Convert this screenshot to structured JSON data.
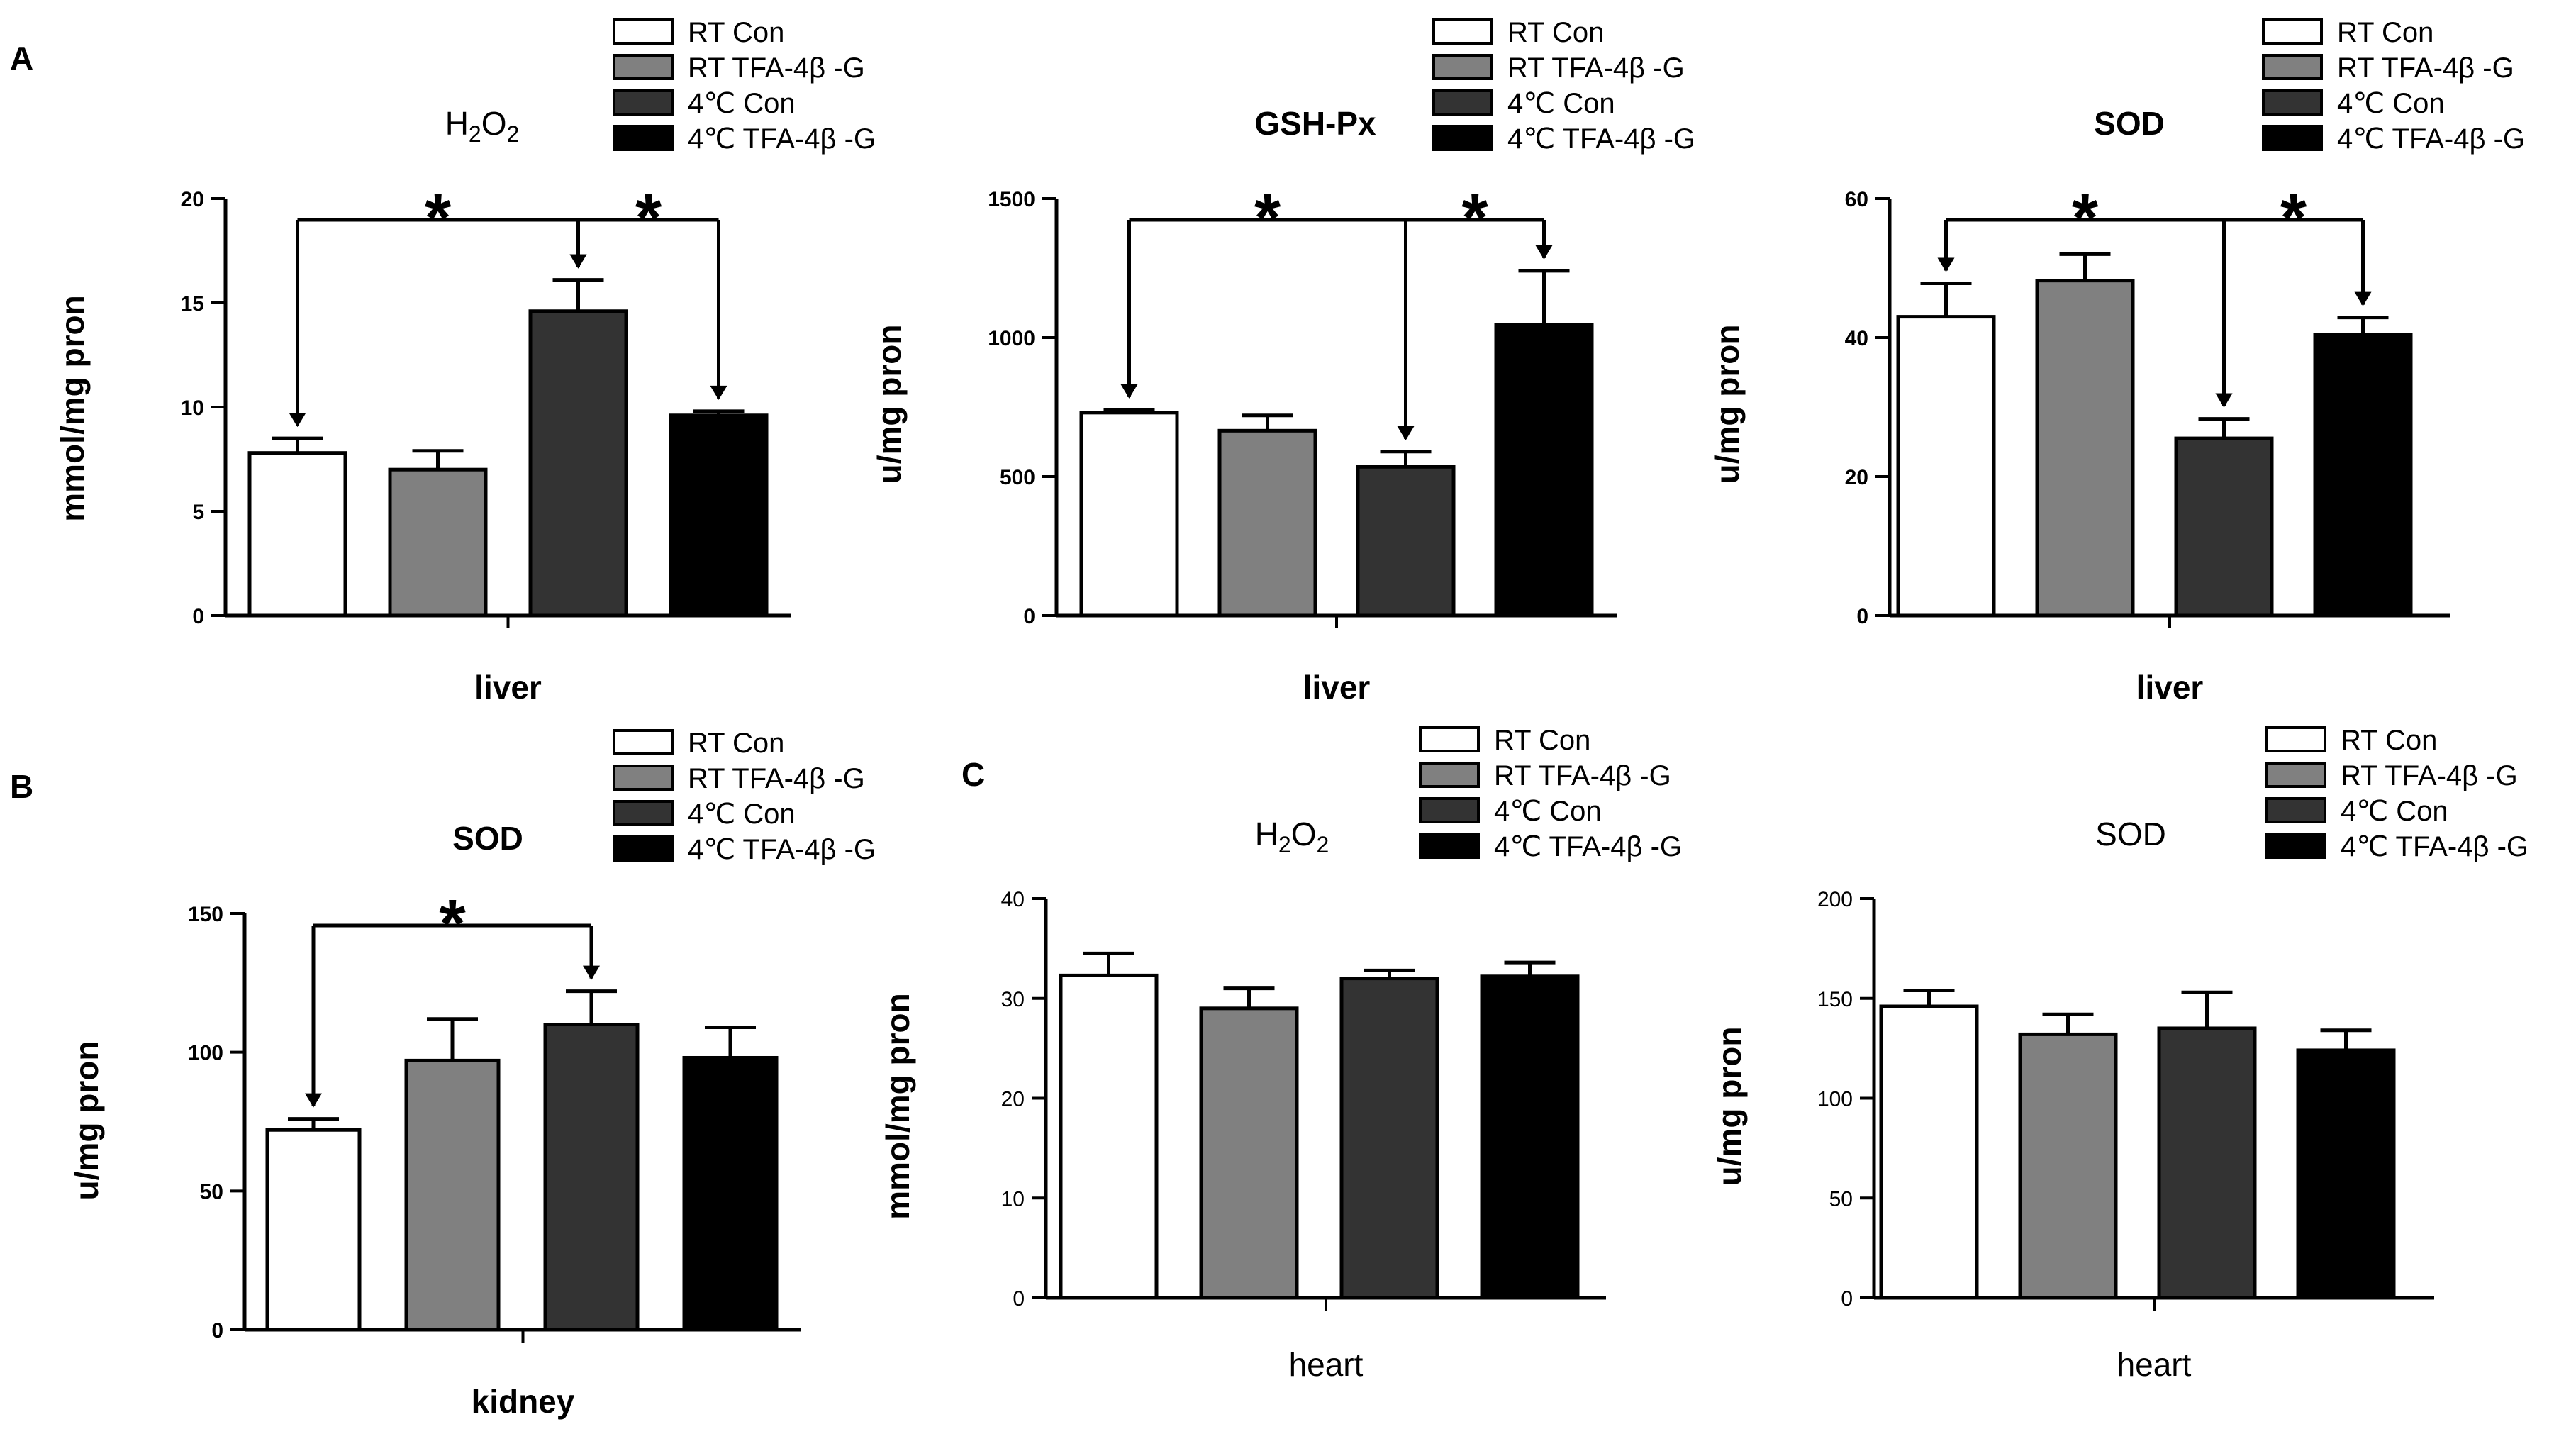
{
  "panel_labels": [
    "A",
    "B",
    "C"
  ],
  "legend": [
    {
      "label": "RT Con",
      "color": "#ffffff"
    },
    {
      "label": "RT TFA-4β -G",
      "color": "#808080"
    },
    {
      "label": "4℃  Con",
      "color": "#333333"
    },
    {
      "label": "4℃  TFA-4β -G",
      "color": "#000000"
    }
  ],
  "chart_data": [
    {
      "id": "liver_h2o2",
      "panel": "A",
      "type": "bar",
      "title": "H2O2",
      "title_main": "H",
      "title_sub1": "2",
      "title_mid": "O",
      "title_sub2": "2",
      "xlabel": "liver",
      "ylabel": "mmol/mg pron",
      "ylim": [
        0,
        20
      ],
      "yticks": [
        0,
        5,
        10,
        15,
        20
      ],
      "categories": [
        "RT Con",
        "RT TFA-4β -G",
        "4℃  Con",
        "4℃  TFA-4β -G"
      ],
      "values": [
        7.8,
        7.0,
        14.6,
        9.6
      ],
      "errors": [
        0.7,
        0.9,
        1.5,
        0.2
      ],
      "annotations": [
        {
          "text": "*",
          "from": 0,
          "to": 2
        },
        {
          "text": "*",
          "from": 2,
          "to": 3
        }
      ]
    },
    {
      "id": "liver_gshpx",
      "panel": "A",
      "type": "bar",
      "title": "GSH-Px",
      "xlabel": "liver",
      "ylabel": "u/mg pron",
      "ylim": [
        0,
        1500
      ],
      "yticks": [
        0,
        500,
        1000,
        1500
      ],
      "categories": [
        "RT Con",
        "RT TFA-4β -G",
        "4℃  Con",
        "4℃  TFA-4β -G"
      ],
      "values": [
        730,
        665,
        535,
        1045
      ],
      "errors": [
        10,
        55,
        55,
        195
      ],
      "annotations": [
        {
          "text": "*",
          "from": 0,
          "to": 2
        },
        {
          "text": "*",
          "from": 2,
          "to": 3
        }
      ]
    },
    {
      "id": "liver_sod",
      "panel": "A",
      "type": "bar",
      "title": "SOD",
      "xlabel": "liver",
      "ylabel": "u/mg pron",
      "ylim": [
        0,
        60
      ],
      "yticks": [
        0,
        20,
        40,
        60
      ],
      "categories": [
        "RT Con",
        "RT TFA-4β -G",
        "4℃  Con",
        "4℃  TFA-4β -G"
      ],
      "values": [
        43.0,
        48.2,
        25.5,
        40.4
      ],
      "errors": [
        4.8,
        3.8,
        2.8,
        2.5
      ],
      "annotations": [
        {
          "text": "*",
          "from": 0,
          "to": 2
        },
        {
          "text": "*",
          "from": 2,
          "to": 3
        }
      ]
    },
    {
      "id": "kidney_sod",
      "panel": "B",
      "type": "bar",
      "title": "SOD",
      "xlabel": "kidney",
      "ylabel": "u/mg pron",
      "ylim": [
        0,
        150
      ],
      "yticks": [
        0,
        50,
        100,
        150
      ],
      "categories": [
        "RT Con",
        "RT TFA-4β -G",
        "4℃  Con",
        "4℃  TFA-4β -G"
      ],
      "values": [
        72,
        97,
        110,
        98
      ],
      "errors": [
        4,
        15,
        12,
        11
      ],
      "annotations": [
        {
          "text": "*",
          "from": 0,
          "to": 2
        }
      ]
    },
    {
      "id": "heart_h2o2",
      "panel": "C",
      "type": "bar",
      "title": "H2O2",
      "title_main": "H",
      "title_sub1": "2",
      "title_mid": "O",
      "title_sub2": "2",
      "xlabel": "heart",
      "ylabel": "mmol/mg pron",
      "ylim": [
        0,
        40
      ],
      "yticks": [
        0,
        10,
        20,
        30,
        40
      ],
      "categories": [
        "RT Con",
        "RT TFA-4β -G",
        "4℃  Con",
        "4℃  TFA-4β -G"
      ],
      "values": [
        32.3,
        29.0,
        32.0,
        32.2
      ],
      "errors": [
        2.2,
        2.0,
        0.8,
        1.4
      ],
      "annotations": []
    },
    {
      "id": "heart_sod",
      "panel": "C",
      "type": "bar",
      "title": "SOD",
      "xlabel": "heart",
      "ylabel": "u/mg pron",
      "ylim": [
        0,
        200
      ],
      "yticks": [
        0,
        50,
        100,
        150,
        200
      ],
      "categories": [
        "RT Con",
        "RT TFA-4β -G",
        "4℃  Con",
        "4℃  TFA-4β -G"
      ],
      "values": [
        146,
        132,
        135,
        124
      ],
      "errors": [
        8,
        10,
        18,
        10
      ],
      "annotations": []
    }
  ]
}
